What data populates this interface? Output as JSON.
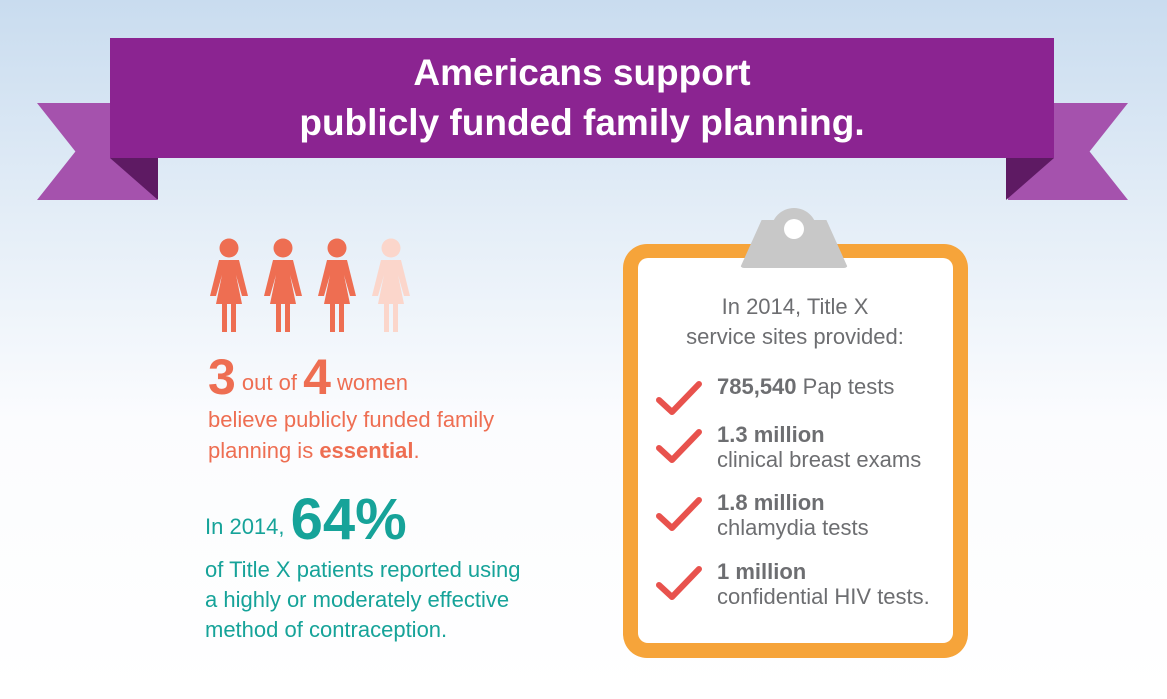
{
  "banner": {
    "line1": "Americans support",
    "line2": "publicly funded family planning."
  },
  "women_stat": {
    "figures_total": 4,
    "figures_highlighted": 3,
    "number_a": "3",
    "text_a": " out of ",
    "number_b": "4",
    "text_b": " women",
    "line2": "believe publicly funded family",
    "line3_prefix": "planning is ",
    "line3_bold": "essential",
    "line3_suffix": ".",
    "colors": {
      "highlight": "#ee6e52",
      "faded": "#fbd6cb"
    }
  },
  "contraception_stat": {
    "prefix": "In 2014, ",
    "big": "64%",
    "line2": "of Title X patients reported using",
    "line3": "a highly or moderately effective",
    "line4": "method of contraception."
  },
  "clipboard": {
    "heading_line1": "In 2014, Title X",
    "heading_line2": "service sites provided:",
    "items": [
      {
        "bold": "785,540",
        "rest": " Pap tests",
        "line2": ""
      },
      {
        "bold": "1.3 million",
        "rest": "",
        "line2": "clinical breast exams"
      },
      {
        "bold": "1.8 million",
        "rest": "",
        "line2": "chlamydia tests"
      },
      {
        "bold": "1 million",
        "rest": "",
        "line2": "confidential HIV tests."
      }
    ],
    "colors": {
      "frame": "#f6a43a",
      "check": "#e8524d",
      "clip": "#c8c8c8"
    }
  },
  "icons": [
    "woman-icon",
    "check-icon",
    "clip-icon"
  ],
  "colors": {
    "banner": "#8b2491",
    "coral": "#ee6e52",
    "teal": "#16a399",
    "gray_text": "#6d6e71"
  }
}
